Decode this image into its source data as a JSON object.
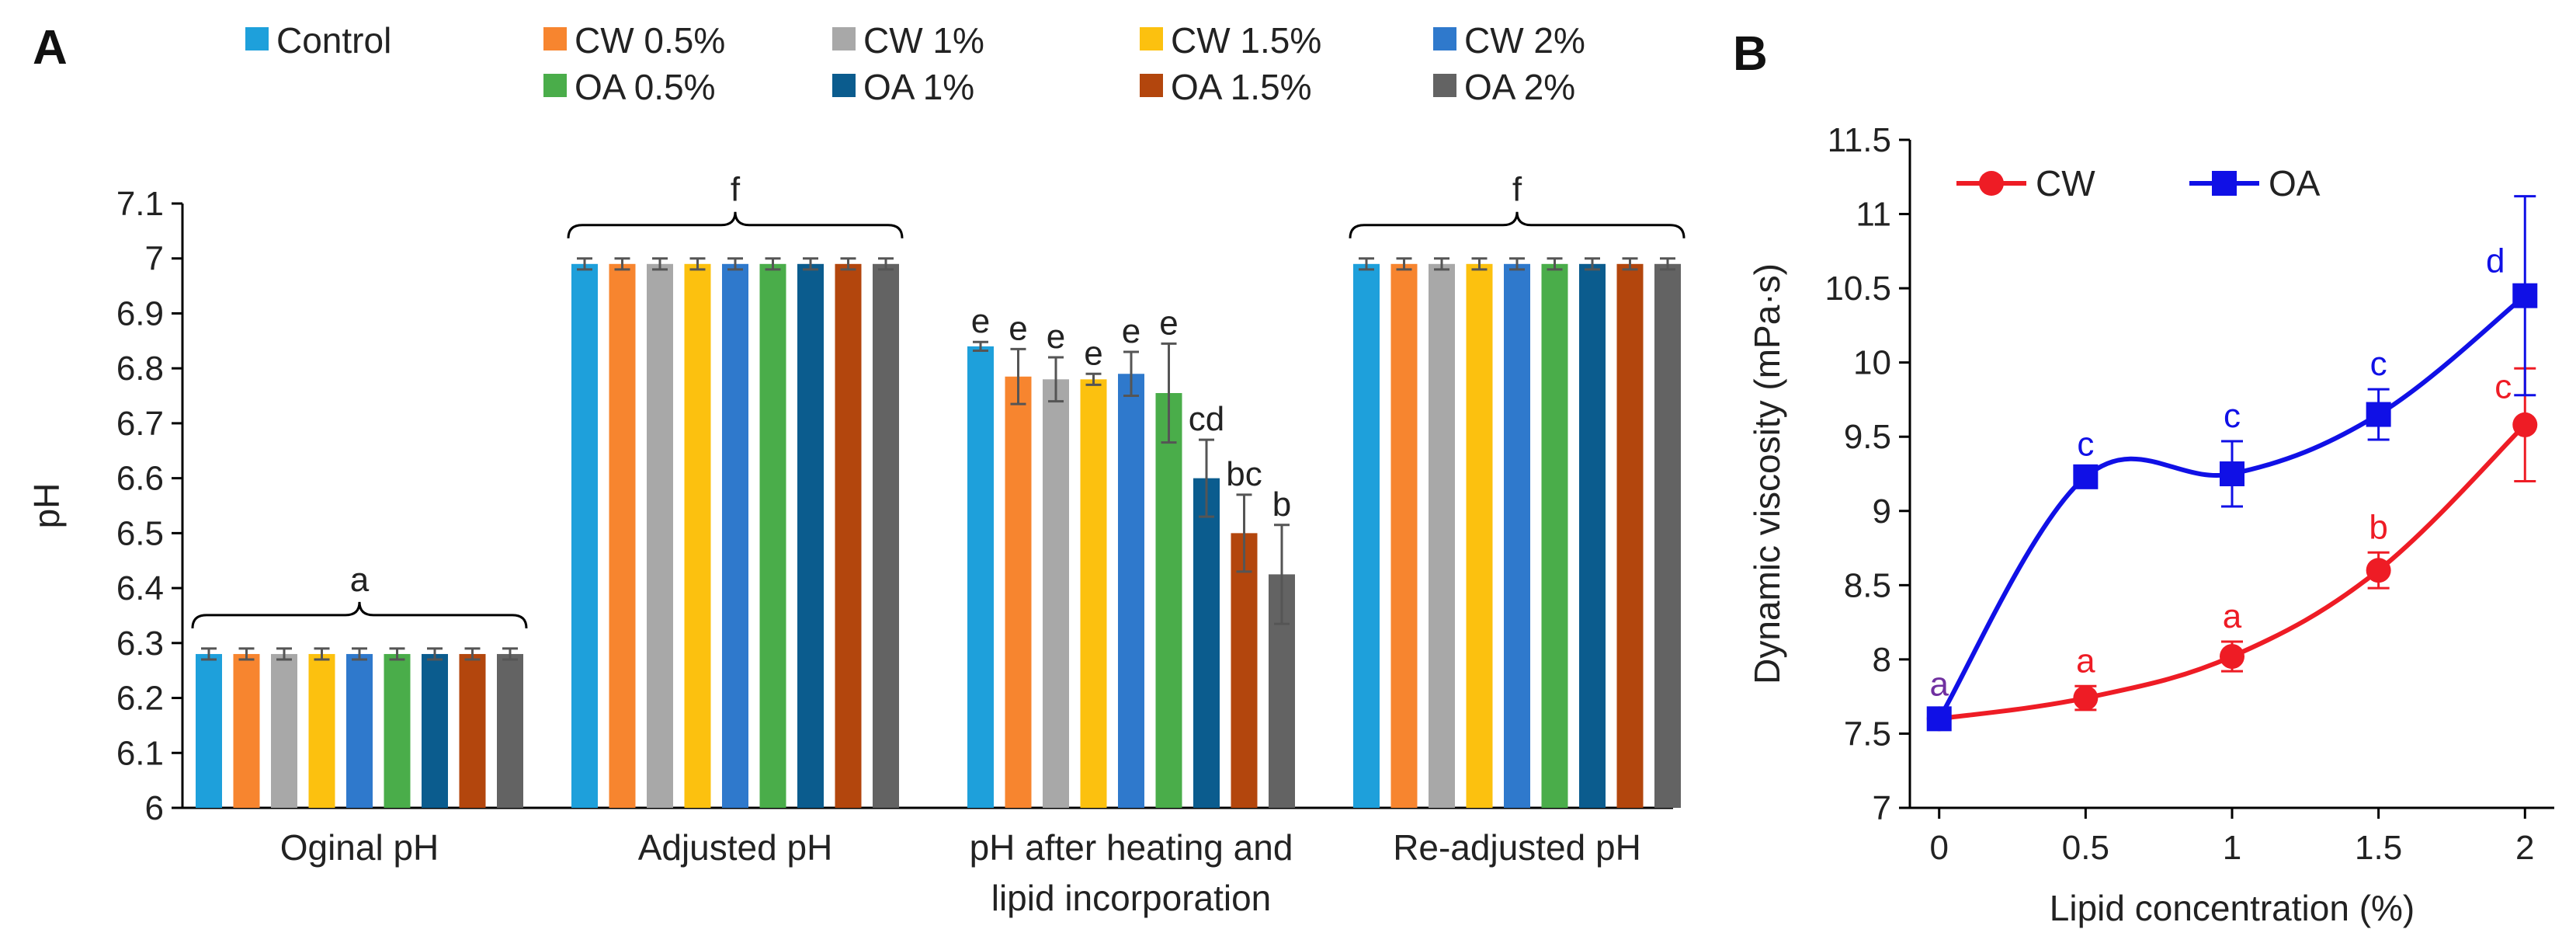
{
  "chart_data": [
    {
      "type": "bar",
      "panel": "A",
      "ylabel": "pH",
      "xlabel": "",
      "ylim": [
        6,
        7.1
      ],
      "yticks": [
        "6",
        "6.1",
        "6.2",
        "6.3",
        "6.4",
        "6.5",
        "6.6",
        "6.7",
        "6.8",
        "6.9",
        "7",
        "7.1"
      ],
      "categories": [
        {
          "label": "Oginal pH"
        },
        {
          "label": "Adjusted pH"
        },
        {
          "label": "pH after heating and",
          "label2": "lipid incorporation"
        },
        {
          "label": "Re-adjusted pH"
        }
      ],
      "series": [
        {
          "name": "Control",
          "color": "#1ea0db",
          "values": [
            6.28,
            6.99,
            6.84,
            6.99
          ],
          "errors": [
            0.01,
            0.01,
            0.008,
            0.01
          ]
        },
        {
          "name": "CW 0.5%",
          "color": "#f7852f",
          "values": [
            6.28,
            6.99,
            6.785,
            6.99
          ],
          "errors": [
            0.01,
            0.01,
            0.05,
            0.01
          ]
        },
        {
          "name": "CW 1%",
          "color": "#a8a8a8",
          "values": [
            6.28,
            6.99,
            6.78,
            6.99
          ],
          "errors": [
            0.01,
            0.01,
            0.04,
            0.01
          ]
        },
        {
          "name": "CW 1.5%",
          "color": "#fcc10f",
          "values": [
            6.28,
            6.99,
            6.78,
            6.99
          ],
          "errors": [
            0.01,
            0.01,
            0.01,
            0.01
          ]
        },
        {
          "name": "CW 2%",
          "color": "#2f79cc",
          "values": [
            6.28,
            6.99,
            6.79,
            6.99
          ],
          "errors": [
            0.01,
            0.01,
            0.04,
            0.01
          ]
        },
        {
          "name": "OA 0.5%",
          "color": "#4aad4a",
          "values": [
            6.28,
            6.99,
            6.755,
            6.99
          ],
          "errors": [
            0.01,
            0.01,
            0.09,
            0.01
          ]
        },
        {
          "name": "OA 1%",
          "color": "#0b5c8e",
          "values": [
            6.28,
            6.99,
            6.6,
            6.99
          ],
          "errors": [
            0.01,
            0.01,
            0.07,
            0.01
          ]
        },
        {
          "name": "OA 1.5%",
          "color": "#b3460d",
          "values": [
            6.28,
            6.99,
            6.5,
            6.99
          ],
          "errors": [
            0.01,
            0.01,
            0.07,
            0.01
          ]
        },
        {
          "name": "OA 2%",
          "color": "#636363",
          "values": [
            6.28,
            6.99,
            6.425,
            6.99
          ],
          "errors": [
            0.01,
            0.01,
            0.09,
            0.01
          ]
        }
      ],
      "group_letters": [
        "a",
        "f",
        "",
        "f"
      ],
      "bar_letters_group3": [
        "e",
        "e",
        "e",
        "e",
        "e",
        "e",
        "cd",
        "bc",
        "b"
      ],
      "legend": [
        "Control",
        "CW 0.5%",
        "CW 1%",
        "CW 1.5%",
        "CW 2%",
        "OA 0.5%",
        "OA 1%",
        "OA 1.5%",
        "OA 2%"
      ],
      "legend_placement": "top"
    },
    {
      "type": "line",
      "panel": "B",
      "xlabel": "Lipid concentration (%)",
      "ylabel": "Dynamic viscosity (mPa·s)",
      "x": [
        0,
        0.5,
        1,
        1.5,
        2
      ],
      "xticks": [
        "0",
        "0.5",
        "1",
        "1.5",
        "2"
      ],
      "ylim": [
        7,
        11.5
      ],
      "yticks": [
        "7",
        "7.5",
        "8",
        "8.5",
        "9",
        "9.5",
        "10",
        "10.5",
        "11",
        "11.5"
      ],
      "series": [
        {
          "name": "CW",
          "color": "#ee1c25",
          "marker": "circle",
          "values": [
            7.6,
            7.74,
            8.02,
            8.6,
            9.58
          ],
          "errors": [
            0.04,
            0.08,
            0.1,
            0.12,
            0.38
          ],
          "letters": [
            "",
            "a",
            "a",
            "b",
            "c"
          ]
        },
        {
          "name": "OA",
          "color": "#1010e6",
          "marker": "square",
          "values": [
            7.6,
            9.23,
            9.25,
            9.65,
            10.45
          ],
          "errors": [
            0.04,
            0.05,
            0.22,
            0.17,
            0.67
          ],
          "letters": [
            "a",
            "c",
            "c",
            "c",
            "d"
          ]
        }
      ],
      "legend_placement": "top-left"
    }
  ],
  "panel_labels": {
    "a": "A",
    "b": "B"
  },
  "colors": {
    "zero_point_letter": "#7030a0",
    "axis": "#000000"
  }
}
